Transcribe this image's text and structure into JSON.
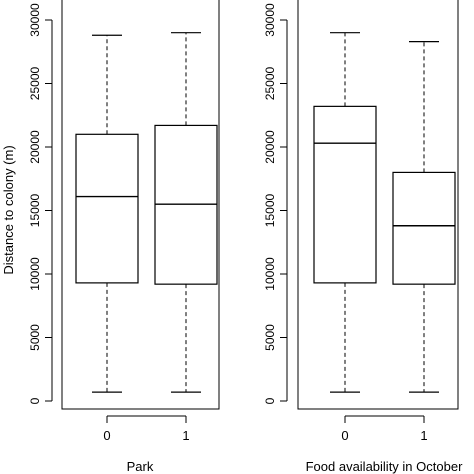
{
  "chart_data": [
    {
      "type": "box",
      "xlabel": "Park",
      "ylabel": "Distance to colony (m)",
      "ylim": [
        0,
        30000
      ],
      "yticks": [
        0,
        5000,
        10000,
        15000,
        20000,
        25000,
        30000
      ],
      "categories": [
        "0",
        "1"
      ],
      "boxes": [
        {
          "min": 700,
          "q1": 9300,
          "median": 16100,
          "q3": 21000,
          "max": 28800
        },
        {
          "min": 700,
          "q1": 9200,
          "median": 15500,
          "q3": 21700,
          "max": 29000
        }
      ]
    },
    {
      "type": "box",
      "xlabel": "Food availability in October",
      "ylabel": "",
      "ylim": [
        0,
        30000
      ],
      "yticks": [
        0,
        5000,
        10000,
        15000,
        20000,
        25000,
        30000
      ],
      "categories": [
        "0",
        "1"
      ],
      "boxes": [
        {
          "min": 700,
          "q1": 9300,
          "median": 20300,
          "q3": 23200,
          "max": 29000
        },
        {
          "min": 700,
          "q1": 9200,
          "median": 13800,
          "q3": 18000,
          "max": 28300
        }
      ]
    }
  ]
}
